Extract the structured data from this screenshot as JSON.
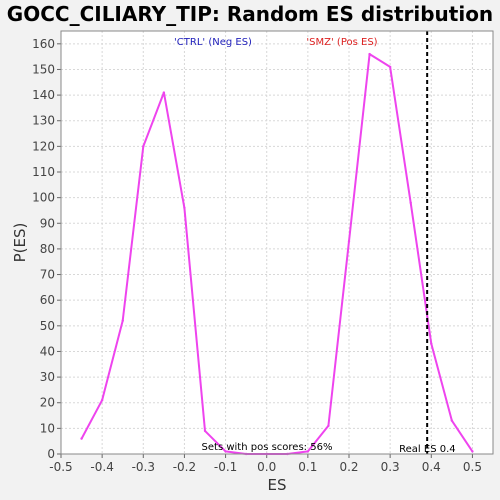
{
  "chart_data": {
    "type": "line",
    "title": "GOCC_CILIARY_TIP: Random ES distribution",
    "xlabel": "ES",
    "ylabel": "P(ES)",
    "xlim": [
      -0.5,
      0.55
    ],
    "ylim": [
      0,
      165
    ],
    "x_ticks": [
      -0.5,
      -0.4,
      -0.3,
      -0.2,
      -0.1,
      0.0,
      0.1,
      0.2,
      0.3,
      0.4,
      0.5
    ],
    "x_tick_labels": [
      "-0.5",
      "-0.4",
      "-0.3",
      "-0.2",
      "-0.1",
      "0.0",
      "0.1",
      "0.2",
      "0.3",
      "0.4",
      "0.5"
    ],
    "y_ticks": [
      0,
      10,
      20,
      30,
      40,
      50,
      60,
      70,
      80,
      90,
      100,
      110,
      120,
      130,
      140,
      150,
      160
    ],
    "y_tick_labels": [
      "0",
      "10",
      "20",
      "30",
      "40",
      "50",
      "60",
      "70",
      "80",
      "90",
      "100",
      "110",
      "120",
      "130",
      "140",
      "150",
      "160"
    ],
    "grid": true,
    "series": [
      {
        "color": "#ee44ee",
        "x": [
          -0.45,
          -0.4,
          -0.35,
          -0.3,
          -0.25,
          -0.2,
          -0.15,
          -0.1,
          -0.05,
          0.0,
          0.05,
          0.1,
          0.15,
          0.2,
          0.25,
          0.3,
          0.35,
          0.4,
          0.45,
          0.5
        ],
        "y": [
          6,
          21,
          52,
          120,
          141,
          96,
          9,
          1,
          0,
          0,
          0,
          1,
          11,
          83,
          156,
          151,
          98,
          43,
          13,
          1
        ]
      }
    ],
    "real_es": {
      "value": 0.39,
      "label": "Real ES 0.4",
      "color": "#000000"
    },
    "annotations": [
      {
        "text": "'CTRL' (Neg ES)",
        "color": "#2222bb"
      },
      {
        "text": "'SMZ' (Pos ES)",
        "color": "#dd2222"
      },
      {
        "text": "Sets with pos scores: 56%",
        "color": "#000000"
      }
    ]
  }
}
